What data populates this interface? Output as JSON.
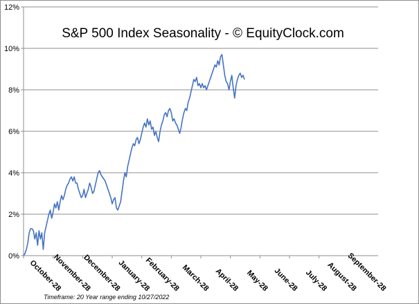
{
  "chart_data": {
    "type": "line",
    "title": "S&P 500 Index Seasonality - © EquityClock.com",
    "footnote": "Timeframe: 20 Year range ending 10/27/2022",
    "xlabel": "",
    "ylabel": "",
    "ylim": [
      0,
      12
    ],
    "y_ticks": [
      0,
      2,
      4,
      6,
      8,
      10,
      12
    ],
    "y_tick_labels": [
      "0%",
      "2%",
      "4%",
      "6%",
      "8%",
      "10%",
      "12%"
    ],
    "x_range": [
      0,
      252
    ],
    "grid": true,
    "line_color": "#4472c4",
    "categories": [
      "October-28",
      "November-28",
      "December-28",
      "January-28",
      "February-28",
      "March-28",
      "April-28",
      "May-28",
      "June-28",
      "July-28",
      "August-28",
      "September-28"
    ],
    "category_x": [
      0,
      21,
      42,
      63,
      84,
      105,
      126,
      147,
      168,
      189,
      210,
      231
    ],
    "series": [
      {
        "name": "S&P 500 Index Seasonality",
        "points": [
          [
            0,
            0.0
          ],
          [
            1,
            0.1
          ],
          [
            2,
            0.3
          ],
          [
            3,
            0.6
          ],
          [
            4,
            1.1
          ],
          [
            5,
            1.3
          ],
          [
            6,
            1.3
          ],
          [
            7,
            1.2
          ],
          [
            8,
            0.8
          ],
          [
            9,
            1.1
          ],
          [
            10,
            0.5
          ],
          [
            11,
            1.2
          ],
          [
            12,
            0.8
          ],
          [
            13,
            1.1
          ],
          [
            14,
            0.3
          ],
          [
            15,
            1.1
          ],
          [
            16,
            1.4
          ],
          [
            17,
            1.7
          ],
          [
            18,
            2.0
          ],
          [
            19,
            2.2
          ],
          [
            20,
            1.8
          ],
          [
            21,
            2.1
          ],
          [
            22,
            2.5
          ],
          [
            23,
            2.3
          ],
          [
            24,
            2.6
          ],
          [
            25,
            2.2
          ],
          [
            26,
            2.6
          ],
          [
            27,
            2.9
          ],
          [
            28,
            2.7
          ],
          [
            29,
            2.9
          ],
          [
            30,
            3.2
          ],
          [
            31,
            3.4
          ],
          [
            32,
            3.5
          ],
          [
            33,
            3.7
          ],
          [
            34,
            3.8
          ],
          [
            35,
            3.6
          ],
          [
            36,
            3.8
          ],
          [
            37,
            3.5
          ],
          [
            38,
            3.5
          ],
          [
            39,
            3.2
          ],
          [
            40,
            3.0
          ],
          [
            41,
            2.8
          ],
          [
            42,
            2.9
          ],
          [
            43,
            3.2
          ],
          [
            44,
            2.8
          ],
          [
            45,
            3.0
          ],
          [
            46,
            3.2
          ],
          [
            47,
            3.5
          ],
          [
            48,
            3.3
          ],
          [
            49,
            3.0
          ],
          [
            50,
            3.1
          ],
          [
            51,
            3.4
          ],
          [
            52,
            3.7
          ],
          [
            53,
            4.0
          ],
          [
            54,
            4.1
          ],
          [
            55,
            3.9
          ],
          [
            56,
            3.8
          ],
          [
            57,
            3.7
          ],
          [
            58,
            3.6
          ],
          [
            59,
            3.4
          ],
          [
            60,
            3.2
          ],
          [
            61,
            3.0
          ],
          [
            62,
            2.8
          ],
          [
            63,
            2.5
          ],
          [
            64,
            2.7
          ],
          [
            65,
            2.8
          ],
          [
            66,
            2.3
          ],
          [
            67,
            2.2
          ],
          [
            68,
            2.4
          ],
          [
            69,
            2.6
          ],
          [
            70,
            3.1
          ],
          [
            71,
            3.6
          ],
          [
            72,
            4.0
          ],
          [
            73,
            3.8
          ],
          [
            74,
            4.3
          ],
          [
            75,
            4.6
          ],
          [
            76,
            4.9
          ],
          [
            77,
            5.2
          ],
          [
            78,
            5.4
          ],
          [
            79,
            5.3
          ],
          [
            80,
            5.6
          ],
          [
            81,
            5.7
          ],
          [
            82,
            5.4
          ],
          [
            83,
            5.6
          ],
          [
            84,
            5.9
          ],
          [
            85,
            6.2
          ],
          [
            86,
            6.4
          ],
          [
            87,
            6.2
          ],
          [
            88,
            6.6
          ],
          [
            89,
            6.3
          ],
          [
            90,
            6.5
          ],
          [
            91,
            6.1
          ],
          [
            92,
            6.2
          ],
          [
            93,
            5.8
          ],
          [
            94,
            6.0
          ],
          [
            95,
            5.7
          ],
          [
            96,
            5.5
          ],
          [
            97,
            6.0
          ],
          [
            98,
            6.3
          ],
          [
            99,
            6.5
          ],
          [
            100,
            6.8
          ],
          [
            101,
            6.9
          ],
          [
            102,
            6.7
          ],
          [
            103,
            7.0
          ],
          [
            104,
            7.1
          ],
          [
            105,
            6.9
          ],
          [
            106,
            6.5
          ],
          [
            107,
            6.6
          ],
          [
            108,
            6.4
          ],
          [
            109,
            6.3
          ],
          [
            110,
            6.1
          ],
          [
            111,
            5.9
          ],
          [
            112,
            6.2
          ],
          [
            113,
            6.6
          ],
          [
            114,
            6.9
          ],
          [
            115,
            7.1
          ],
          [
            116,
            7.0
          ],
          [
            117,
            7.4
          ],
          [
            118,
            7.6
          ],
          [
            119,
            7.9
          ],
          [
            120,
            8.2
          ],
          [
            121,
            8.5
          ],
          [
            122,
            8.4
          ],
          [
            123,
            8.6
          ],
          [
            124,
            8.2
          ],
          [
            125,
            8.3
          ],
          [
            126,
            8.1
          ],
          [
            127,
            8.3
          ],
          [
            128,
            8.1
          ],
          [
            129,
            8.2
          ],
          [
            130,
            8.0
          ],
          [
            131,
            8.2
          ],
          [
            132,
            8.4
          ],
          [
            133,
            8.6
          ],
          [
            134,
            8.8
          ],
          [
            135,
            9.0
          ],
          [
            136,
            9.2
          ],
          [
            137,
            9.1
          ],
          [
            138,
            9.4
          ],
          [
            139,
            9.2
          ],
          [
            140,
            9.6
          ],
          [
            141,
            9.7
          ],
          [
            142,
            9.2
          ],
          [
            143,
            8.7
          ],
          [
            144,
            8.4
          ],
          [
            145,
            8.3
          ],
          [
            146,
            8.0
          ],
          [
            147,
            8.4
          ],
          [
            148,
            8.7
          ],
          [
            149,
            8.1
          ],
          [
            150,
            7.6
          ],
          [
            151,
            8.2
          ],
          [
            152,
            8.5
          ],
          [
            153,
            8.7
          ],
          [
            154,
            8.8
          ],
          [
            155,
            8.6
          ],
          [
            156,
            8.7
          ],
          [
            157,
            8.5
          ]
        ]
      }
    ]
  }
}
